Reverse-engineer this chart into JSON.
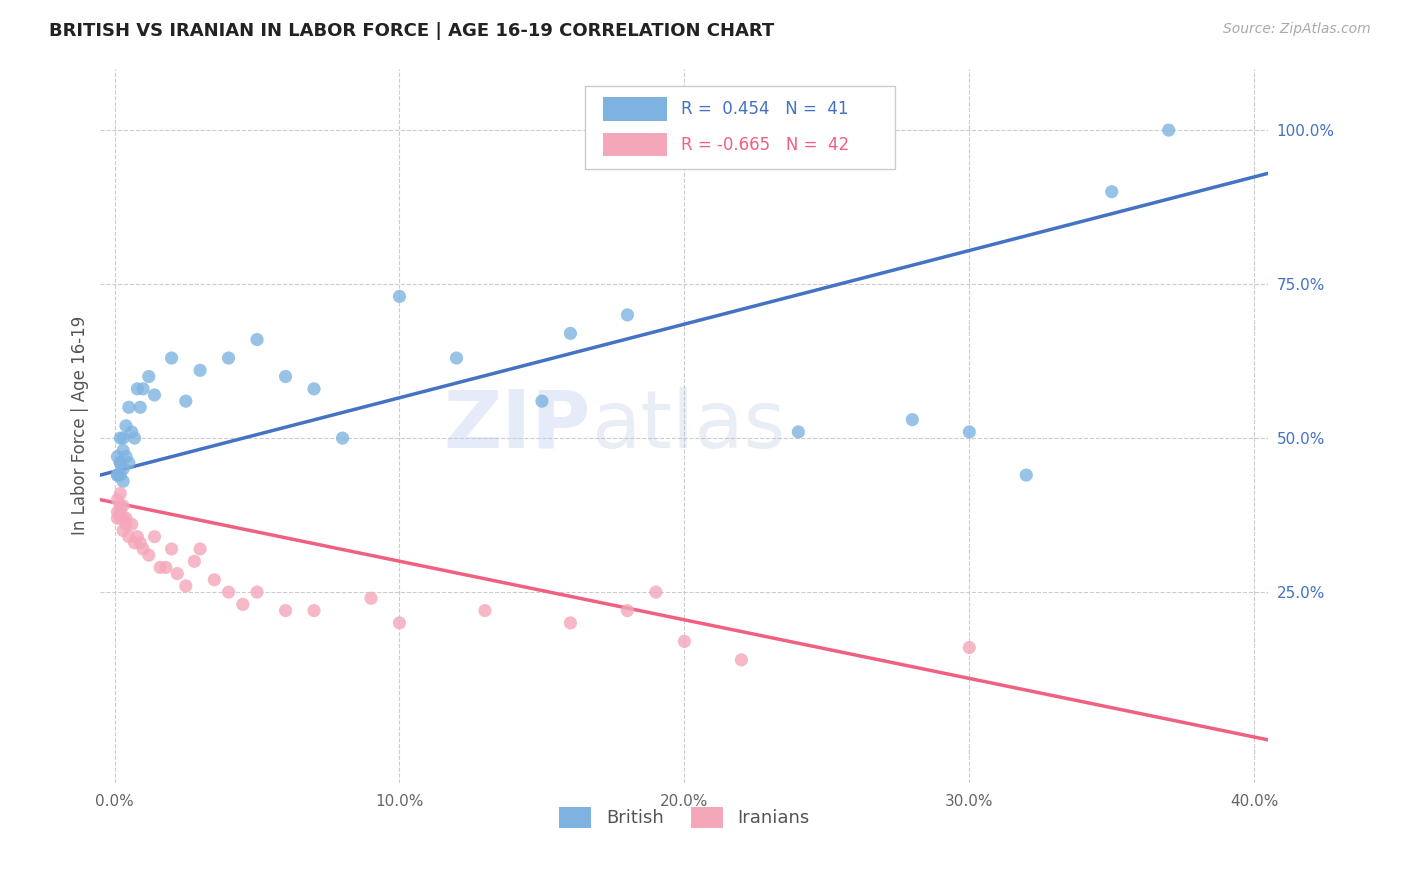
{
  "title": "BRITISH VS IRANIAN IN LABOR FORCE | AGE 16-19 CORRELATION CHART",
  "source": "Source: ZipAtlas.com",
  "ylabel": "In Labor Force | Age 16-19",
  "x_tick_vals": [
    0.0,
    0.1,
    0.2,
    0.3,
    0.4
  ],
  "x_tick_labels": [
    "0.0%",
    "10.0%",
    "20.0%",
    "30.0%",
    "40.0%"
  ],
  "y_ticks_right": [
    1.0,
    0.75,
    0.5,
    0.25
  ],
  "y_tick_labels_right": [
    "100.0%",
    "75.0%",
    "50.0%",
    "25.0%"
  ],
  "british_color": "#7EB3E0",
  "iranian_color": "#F4A7B9",
  "british_line_color": "#4472C4",
  "iranian_line_color": "#F06080",
  "watermark_zip": "ZIP",
  "watermark_atlas": "atlas",
  "legend_R_british": "R =  0.454",
  "legend_N_british": "N =  41",
  "legend_R_iranian": "R = -0.665",
  "legend_N_iranian": "N =  42",
  "british_x": [
    0.001,
    0.001,
    0.001,
    0.002,
    0.002,
    0.002,
    0.002,
    0.003,
    0.003,
    0.003,
    0.003,
    0.004,
    0.004,
    0.005,
    0.005,
    0.006,
    0.007,
    0.008,
    0.009,
    0.01,
    0.012,
    0.014,
    0.02,
    0.025,
    0.03,
    0.04,
    0.05,
    0.06,
    0.07,
    0.08,
    0.1,
    0.12,
    0.15,
    0.16,
    0.18,
    0.24,
    0.28,
    0.3,
    0.32,
    0.35,
    0.37
  ],
  "british_y": [
    0.44,
    0.47,
    0.44,
    0.46,
    0.5,
    0.46,
    0.44,
    0.48,
    0.5,
    0.45,
    0.43,
    0.52,
    0.47,
    0.55,
    0.46,
    0.51,
    0.5,
    0.58,
    0.55,
    0.58,
    0.6,
    0.57,
    0.63,
    0.56,
    0.61,
    0.63,
    0.66,
    0.6,
    0.58,
    0.5,
    0.73,
    0.63,
    0.56,
    0.67,
    0.7,
    0.51,
    0.53,
    0.51,
    0.44,
    0.9,
    1.0
  ],
  "iranian_x": [
    0.001,
    0.001,
    0.001,
    0.002,
    0.002,
    0.002,
    0.002,
    0.003,
    0.003,
    0.003,
    0.004,
    0.004,
    0.005,
    0.006,
    0.007,
    0.008,
    0.009,
    0.01,
    0.012,
    0.014,
    0.016,
    0.018,
    0.02,
    0.022,
    0.025,
    0.028,
    0.03,
    0.035,
    0.04,
    0.045,
    0.05,
    0.06,
    0.07,
    0.09,
    0.1,
    0.13,
    0.16,
    0.18,
    0.19,
    0.2,
    0.22,
    0.3
  ],
  "iranian_y": [
    0.38,
    0.4,
    0.37,
    0.41,
    0.37,
    0.39,
    0.38,
    0.37,
    0.39,
    0.35,
    0.37,
    0.36,
    0.34,
    0.36,
    0.33,
    0.34,
    0.33,
    0.32,
    0.31,
    0.34,
    0.29,
    0.29,
    0.32,
    0.28,
    0.26,
    0.3,
    0.32,
    0.27,
    0.25,
    0.23,
    0.25,
    0.22,
    0.22,
    0.24,
    0.2,
    0.22,
    0.2,
    0.22,
    0.25,
    0.17,
    0.14,
    0.16
  ],
  "background_color": "#FFFFFF",
  "grid_color": "#CCCCCC",
  "figsize": [
    14.06,
    8.92
  ],
  "dpi": 100,
  "xlim": [
    -0.005,
    0.405
  ],
  "ylim": [
    -0.06,
    1.1
  ]
}
